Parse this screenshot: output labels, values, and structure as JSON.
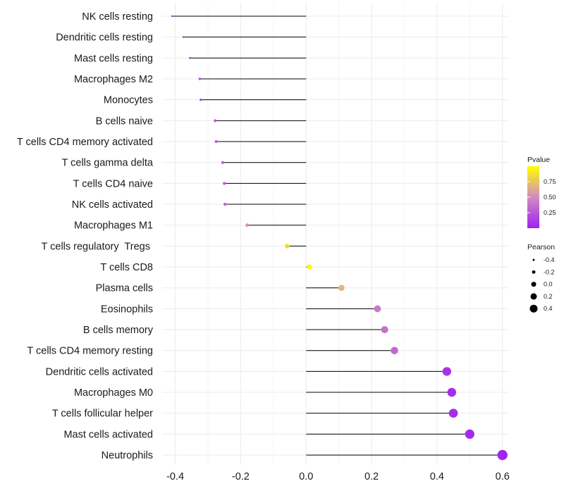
{
  "chart_data": {
    "type": "lollipop",
    "categories": [
      "NK cells resting",
      "Dendritic cells resting",
      "Mast cells resting",
      "Macrophages M2",
      "Monocytes",
      "B cells naive",
      "T cells CD4 memory activated",
      "T cells gamma delta",
      "T cells CD4 naive",
      "NK cells activated",
      "Macrophages M1",
      "T cells regulatory  Tregs ",
      "T cells CD8",
      "Plasma cells",
      "Eosinophils",
      "B cells memory",
      "T cells CD4 memory resting",
      "Dendritic cells activated",
      "Macrophages M0",
      "T cells follicular helper",
      "Mast cells activated",
      "Neutrophils"
    ],
    "values": [
      -0.41,
      -0.375,
      -0.355,
      -0.325,
      -0.322,
      -0.278,
      -0.275,
      -0.255,
      -0.25,
      -0.248,
      -0.18,
      -0.058,
      0.01,
      0.108,
      0.218,
      0.24,
      0.27,
      0.43,
      0.445,
      0.45,
      0.5,
      0.6
    ],
    "pvalues": [
      0.15,
      0.22,
      0.2,
      0.18,
      0.2,
      0.25,
      0.28,
      0.3,
      0.3,
      0.32,
      0.55,
      0.85,
      0.98,
      0.68,
      0.42,
      0.38,
      0.33,
      0.08,
      0.06,
      0.06,
      0.04,
      0.02
    ],
    "xticks": [
      -0.4,
      -0.2,
      0.0,
      0.2,
      0.4,
      0.6
    ],
    "xtick_labels": [
      "-0.4",
      "-0.2",
      "0.0",
      "0.2",
      "0.4",
      "0.6"
    ],
    "xlim": [
      -0.44,
      0.62
    ],
    "grid": true,
    "legend_color": {
      "title": "Pvalue",
      "ticks": [
        0.25,
        0.5,
        0.75
      ],
      "tick_labels": [
        "0.25",
        "0.50",
        "0.75"
      ],
      "low_color": "#a020f0",
      "mid_color": "#d08cc0",
      "high_color": "#ffff00"
    },
    "legend_size": {
      "title": "Pearson",
      "values": [
        -0.4,
        -0.2,
        0.0,
        0.2,
        0.4
      ],
      "labels": [
        "-0.4",
        "-0.2",
        "0.0",
        "0.2",
        "0.4"
      ]
    },
    "legend_position": "right"
  }
}
